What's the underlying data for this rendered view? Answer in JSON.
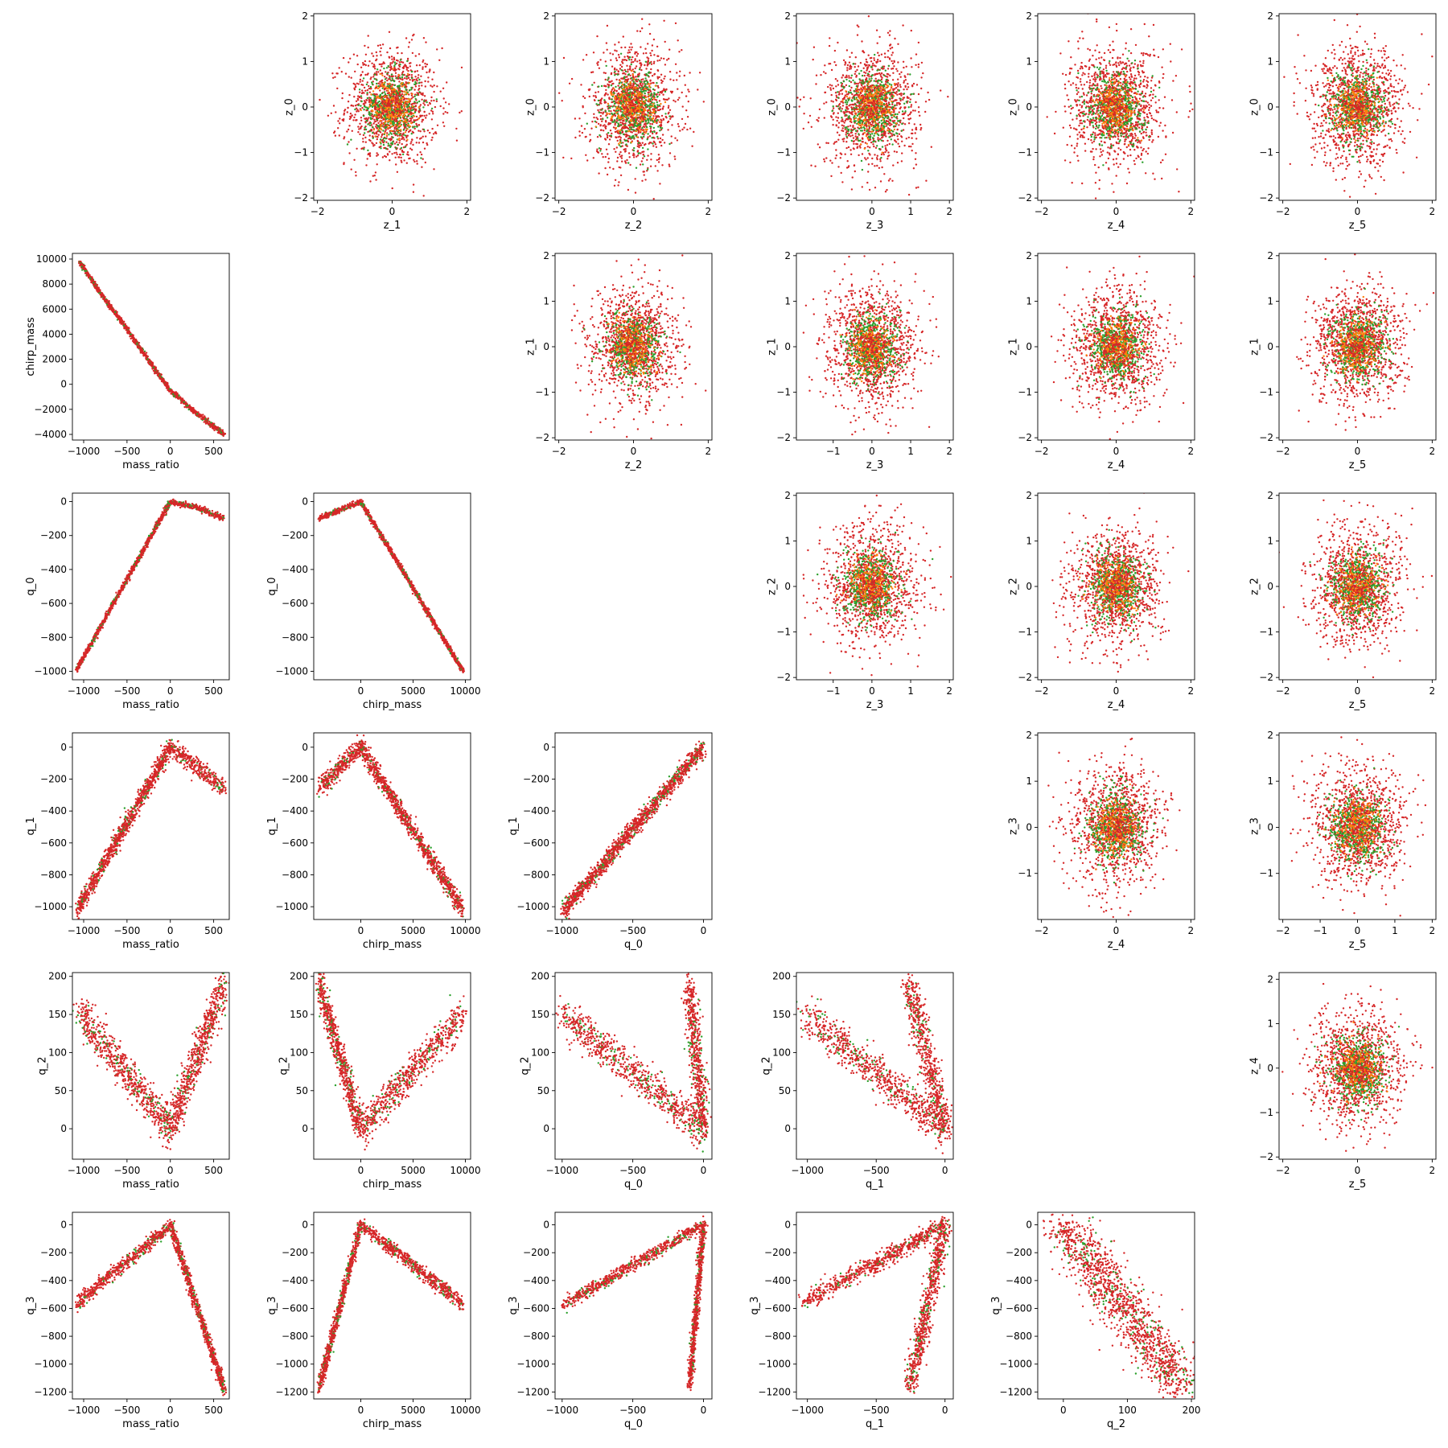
{
  "colors": {
    "red": "#d62728",
    "green": "#2ca02c",
    "orange": "#ff7f0e"
  },
  "chart_data": {
    "type": "scatter",
    "layout": "pair-plot",
    "grid": false,
    "panels": [
      {
        "row": 0,
        "col": 1,
        "xlabel": "z_1",
        "ylabel": "z_0",
        "xlim": [
          -2.1,
          2.1
        ],
        "ylim": [
          -2.05,
          2.05
        ],
        "xticks": [
          -2,
          0,
          2
        ],
        "yticks": [
          -2,
          -1,
          0,
          1,
          2
        ],
        "shape": "blob",
        "spread": [
          0.62,
          0.65
        ]
      },
      {
        "row": 0,
        "col": 2,
        "xlabel": "z_2",
        "ylabel": "z_0",
        "xlim": [
          -2.1,
          2.1
        ],
        "ylim": [
          -2.05,
          2.05
        ],
        "xticks": [
          -2,
          0,
          2
        ],
        "yticks": [
          -2,
          -1,
          0,
          1,
          2
        ],
        "shape": "blob",
        "spread": [
          0.62,
          0.65
        ]
      },
      {
        "row": 0,
        "col": 3,
        "xlabel": "z_3",
        "ylabel": "z_0",
        "xlim": [
          -1.95,
          2.1
        ],
        "ylim": [
          -2.05,
          2.05
        ],
        "xticks": [
          0,
          1,
          2
        ],
        "yticks": [
          -2,
          -1,
          0,
          1,
          2
        ],
        "shape": "blob",
        "spread": [
          0.6,
          0.65
        ]
      },
      {
        "row": 0,
        "col": 4,
        "xlabel": "z_4",
        "ylabel": "z_0",
        "xlim": [
          -2.1,
          2.1
        ],
        "ylim": [
          -2.05,
          2.05
        ],
        "xticks": [
          -2,
          0,
          2
        ],
        "yticks": [
          -2,
          -1,
          0,
          1,
          2
        ],
        "shape": "blob",
        "spread": [
          0.62,
          0.65
        ]
      },
      {
        "row": 0,
        "col": 5,
        "xlabel": "z_5",
        "ylabel": "z_0",
        "xlim": [
          -2.1,
          2.1
        ],
        "ylim": [
          -2.05,
          2.05
        ],
        "xticks": [
          -2,
          0,
          2
        ],
        "yticks": [
          -2,
          -1,
          0,
          1,
          2
        ],
        "shape": "blob",
        "spread": [
          0.62,
          0.65
        ]
      },
      {
        "row": 1,
        "col": 0,
        "xlabel": "mass_ratio",
        "ylabel": "chirp_mass",
        "xlim": [
          -1130,
          680
        ],
        "ylim": [
          -4450,
          10450
        ],
        "xticks": [
          -1000,
          -500,
          0,
          500
        ],
        "yticks": [
          -4000,
          -2000,
          0,
          2000,
          4000,
          6000,
          8000,
          10000
        ],
        "shape": "poly",
        "pts": [
          [
            -1050,
            9800
          ],
          [
            -800,
            7200
          ],
          [
            -500,
            4400
          ],
          [
            -250,
            1900
          ],
          [
            0,
            -500
          ],
          [
            300,
            -2300
          ],
          [
            620,
            -4000
          ]
        ],
        "jitter": [
          8,
          90
        ]
      },
      {
        "row": 1,
        "col": 2,
        "xlabel": "z_2",
        "ylabel": "z_1",
        "xlim": [
          -2.1,
          2.1
        ],
        "ylim": [
          -2.05,
          2.05
        ],
        "xticks": [
          -2,
          0,
          2
        ],
        "yticks": [
          -2,
          -1,
          0,
          1,
          2
        ],
        "shape": "blob",
        "spread": [
          0.62,
          0.65
        ]
      },
      {
        "row": 1,
        "col": 3,
        "xlabel": "z_3",
        "ylabel": "z_1",
        "xlim": [
          -1.95,
          2.1
        ],
        "ylim": [
          -2.05,
          2.05
        ],
        "xticks": [
          -1,
          0,
          1,
          2
        ],
        "yticks": [
          -2,
          -1,
          0,
          1,
          2
        ],
        "shape": "blob",
        "spread": [
          0.6,
          0.65
        ]
      },
      {
        "row": 1,
        "col": 4,
        "xlabel": "z_4",
        "ylabel": "z_1",
        "xlim": [
          -2.1,
          2.1
        ],
        "ylim": [
          -2.05,
          2.05
        ],
        "xticks": [
          -2,
          0,
          2
        ],
        "yticks": [
          -2,
          -1,
          0,
          1,
          2
        ],
        "shape": "blob",
        "spread": [
          0.62,
          0.65
        ]
      },
      {
        "row": 1,
        "col": 5,
        "xlabel": "z_5",
        "ylabel": "z_1",
        "xlim": [
          -2.1,
          2.1
        ],
        "ylim": [
          -2.05,
          2.05
        ],
        "xticks": [
          -2,
          0,
          2
        ],
        "yticks": [
          -2,
          -1,
          0,
          1,
          2
        ],
        "shape": "blob",
        "spread": [
          0.62,
          0.65
        ]
      },
      {
        "row": 2,
        "col": 0,
        "xlabel": "mass_ratio",
        "ylabel": "q_0",
        "xlim": [
          -1130,
          680
        ],
        "ylim": [
          -1050,
          50
        ],
        "xticks": [
          -1000,
          -500,
          0,
          500
        ],
        "yticks": [
          -1000,
          -800,
          -600,
          -400,
          -200,
          0
        ],
        "shape": "poly",
        "pts": [
          [
            -1080,
            -990
          ],
          [
            0,
            0
          ],
          [
            300,
            -35
          ],
          [
            620,
            -100
          ]
        ],
        "jitter": [
          8,
          8
        ]
      },
      {
        "row": 2,
        "col": 1,
        "xlabel": "chirp_mass",
        "ylabel": "q_0",
        "xlim": [
          -4500,
          10500
        ],
        "ylim": [
          -1050,
          50
        ],
        "xticks": [
          0,
          5000,
          10000
        ],
        "yticks": [
          -1000,
          -800,
          -600,
          -400,
          -200,
          0
        ],
        "shape": "poly",
        "pts": [
          [
            -4000,
            -100
          ],
          [
            0,
            0
          ],
          [
            9800,
            -1000
          ]
        ],
        "jitter": [
          60,
          8
        ]
      },
      {
        "row": 2,
        "col": 3,
        "xlabel": "z_3",
        "ylabel": "z_2",
        "xlim": [
          -1.95,
          2.1
        ],
        "ylim": [
          -2.05,
          2.05
        ],
        "xticks": [
          -1,
          0,
          1,
          2
        ],
        "yticks": [
          -2,
          -1,
          0,
          1,
          2
        ],
        "shape": "blob",
        "spread": [
          0.6,
          0.65
        ]
      },
      {
        "row": 2,
        "col": 4,
        "xlabel": "z_4",
        "ylabel": "z_2",
        "xlim": [
          -2.1,
          2.1
        ],
        "ylim": [
          -2.05,
          2.05
        ],
        "xticks": [
          -2,
          0,
          2
        ],
        "yticks": [
          -2,
          -1,
          0,
          1,
          2
        ],
        "shape": "blob",
        "spread": [
          0.62,
          0.65
        ]
      },
      {
        "row": 2,
        "col": 5,
        "xlabel": "z_5",
        "ylabel": "z_2",
        "xlim": [
          -2.1,
          2.1
        ],
        "ylim": [
          -2.05,
          2.05
        ],
        "xticks": [
          -2,
          0,
          2
        ],
        "yticks": [
          -2,
          -1,
          0,
          1,
          2
        ],
        "shape": "blob",
        "spread": [
          0.62,
          0.65
        ]
      },
      {
        "row": 3,
        "col": 0,
        "xlabel": "mass_ratio",
        "ylabel": "q_1",
        "xlim": [
          -1130,
          680
        ],
        "ylim": [
          -1080,
          90
        ],
        "xticks": [
          -1000,
          -500,
          0,
          500
        ],
        "yticks": [
          -1000,
          -800,
          -600,
          -400,
          -200,
          0
        ],
        "shape": "poly",
        "pts": [
          [
            -1080,
            -1030
          ],
          [
            0,
            0
          ],
          [
            300,
            -120
          ],
          [
            620,
            -260
          ]
        ],
        "jitter": [
          15,
          30
        ]
      },
      {
        "row": 3,
        "col": 1,
        "xlabel": "chirp_mass",
        "ylabel": "q_1",
        "xlim": [
          -4500,
          10500
        ],
        "ylim": [
          -1080,
          90
        ],
        "xticks": [
          0,
          5000,
          10000
        ],
        "yticks": [
          -1000,
          -800,
          -600,
          -400,
          -200,
          0
        ],
        "shape": "poly",
        "pts": [
          [
            -4000,
            -260
          ],
          [
            0,
            0
          ],
          [
            9800,
            -1030
          ]
        ],
        "jitter": [
          120,
          30
        ]
      },
      {
        "row": 3,
        "col": 2,
        "xlabel": "q_0",
        "ylabel": "q_1",
        "xlim": [
          -1050,
          60
        ],
        "ylim": [
          -1080,
          90
        ],
        "xticks": [
          -1000,
          -500,
          0
        ],
        "yticks": [
          -1000,
          -800,
          -600,
          -400,
          -200,
          0
        ],
        "shape": "poly",
        "pts": [
          [
            -1000,
            -1030
          ],
          [
            0,
            0
          ]
        ],
        "jitter": [
          10,
          28
        ]
      },
      {
        "row": 3,
        "col": 4,
        "xlabel": "z_4",
        "ylabel": "z_3",
        "xlim": [
          -2.1,
          2.1
        ],
        "ylim": [
          -2.0,
          2.05
        ],
        "xticks": [
          -2,
          0,
          2
        ],
        "yticks": [
          -1,
          0,
          1,
          2
        ],
        "shape": "blob",
        "spread": [
          0.62,
          0.65
        ]
      },
      {
        "row": 3,
        "col": 5,
        "xlabel": "z_5",
        "ylabel": "z_3",
        "xlim": [
          -2.1,
          2.1
        ],
        "ylim": [
          -2.0,
          2.05
        ],
        "xticks": [
          -2,
          -1,
          0,
          1,
          2
        ],
        "yticks": [
          -1,
          0,
          1,
          2
        ],
        "shape": "blob",
        "spread": [
          0.62,
          0.65
        ]
      },
      {
        "row": 4,
        "col": 0,
        "xlabel": "mass_ratio",
        "ylabel": "q_2",
        "xlim": [
          -1130,
          680
        ],
        "ylim": [
          -40,
          205
        ],
        "xticks": [
          -1000,
          -500,
          0,
          500
        ],
        "yticks": [
          0,
          50,
          100,
          150,
          200
        ],
        "shape": "poly",
        "pts": [
          [
            -1050,
            150
          ],
          [
            0,
            0
          ],
          [
            620,
            190
          ]
        ],
        "jitter": [
          40,
          12
        ]
      },
      {
        "row": 4,
        "col": 1,
        "xlabel": "chirp_mass",
        "ylabel": "q_2",
        "xlim": [
          -4500,
          10500
        ],
        "ylim": [
          -40,
          205
        ],
        "xticks": [
          0,
          5000,
          10000
        ],
        "yticks": [
          0,
          50,
          100,
          150,
          200
        ],
        "shape": "poly",
        "pts": [
          [
            -4000,
            190
          ],
          [
            0,
            0
          ],
          [
            9800,
            150
          ]
        ],
        "jitter": [
          200,
          12
        ]
      },
      {
        "row": 4,
        "col": 2,
        "xlabel": "q_0",
        "ylabel": "q_2",
        "xlim": [
          -1050,
          60
        ],
        "ylim": [
          -40,
          205
        ],
        "xticks": [
          -1000,
          -500,
          0
        ],
        "yticks": [
          0,
          50,
          100,
          150,
          200
        ],
        "shape": "poly",
        "pts": [
          [
            -1000,
            150
          ],
          [
            0,
            0
          ],
          [
            -100,
            190
          ]
        ],
        "jitter": [
          25,
          12
        ]
      },
      {
        "row": 4,
        "col": 3,
        "xlabel": "q_1",
        "ylabel": "q_2",
        "xlim": [
          -1080,
          60
        ],
        "ylim": [
          -40,
          205
        ],
        "xticks": [
          -1000,
          -500,
          0
        ],
        "yticks": [
          0,
          50,
          100,
          150,
          200
        ],
        "shape": "poly",
        "pts": [
          [
            -1030,
            150
          ],
          [
            0,
            0
          ],
          [
            -260,
            190
          ]
        ],
        "jitter": [
          30,
          12
        ]
      },
      {
        "row": 4,
        "col": 5,
        "xlabel": "z_5",
        "ylabel": "z_4",
        "xlim": [
          -2.1,
          2.1
        ],
        "ylim": [
          -2.05,
          2.15
        ],
        "xticks": [
          -2,
          0,
          2
        ],
        "yticks": [
          -2,
          -1,
          0,
          1,
          2
        ],
        "shape": "blob",
        "spread": [
          0.62,
          0.65
        ]
      },
      {
        "row": 5,
        "col": 0,
        "xlabel": "mass_ratio",
        "ylabel": "q_3",
        "xlim": [
          -1130,
          680
        ],
        "ylim": [
          -1250,
          90
        ],
        "xticks": [
          -1000,
          -500,
          0,
          500
        ],
        "yticks": [
          -1200,
          -1000,
          -800,
          -600,
          -400,
          -200,
          0
        ],
        "shape": "poly",
        "pts": [
          [
            -1080,
            -570
          ],
          [
            0,
            0
          ],
          [
            620,
            -1180
          ]
        ],
        "jitter": [
          15,
          25
        ]
      },
      {
        "row": 5,
        "col": 1,
        "xlabel": "chirp_mass",
        "ylabel": "q_3",
        "xlim": [
          -4500,
          10500
        ],
        "ylim": [
          -1250,
          90
        ],
        "xticks": [
          0,
          5000,
          10000
        ],
        "yticks": [
          -1200,
          -1000,
          -800,
          -600,
          -400,
          -200,
          0
        ],
        "shape": "poly",
        "pts": [
          [
            -4000,
            -1180
          ],
          [
            0,
            0
          ],
          [
            9800,
            -570
          ]
        ],
        "jitter": [
          120,
          25
        ]
      },
      {
        "row": 5,
        "col": 2,
        "xlabel": "q_0",
        "ylabel": "q_3",
        "xlim": [
          -1050,
          60
        ],
        "ylim": [
          -1250,
          90
        ],
        "xticks": [
          -1000,
          -500,
          0
        ],
        "yticks": [
          -1200,
          -1000,
          -800,
          -600,
          -400,
          -200,
          0
        ],
        "shape": "poly",
        "pts": [
          [
            -1000,
            -580
          ],
          [
            0,
            0
          ],
          [
            -100,
            -1180
          ]
        ],
        "jitter": [
          10,
          22
        ]
      },
      {
        "row": 5,
        "col": 3,
        "xlabel": "q_1",
        "ylabel": "q_3",
        "xlim": [
          -1080,
          60
        ],
        "ylim": [
          -1250,
          90
        ],
        "xticks": [
          -1000,
          -500,
          0
        ],
        "yticks": [
          -1200,
          -1000,
          -800,
          -600,
          -400,
          -200,
          0
        ],
        "shape": "poly",
        "pts": [
          [
            -1030,
            -560
          ],
          [
            0,
            0
          ],
          [
            -260,
            -1180
          ]
        ],
        "jitter": [
          25,
          30
        ]
      },
      {
        "row": 5,
        "col": 4,
        "xlabel": "q_2",
        "ylabel": "q_3",
        "xlim": [
          -40,
          205
        ],
        "ylim": [
          -1250,
          90
        ],
        "xticks": [
          0,
          100,
          200
        ],
        "yticks": [
          -1200,
          -1000,
          -800,
          -600,
          -400,
          -200,
          0
        ],
        "shape": "poly",
        "pts": [
          [
            0,
            0
          ],
          [
            190,
            -1180
          ]
        ],
        "jitter": [
          20,
          60
        ]
      }
    ]
  }
}
